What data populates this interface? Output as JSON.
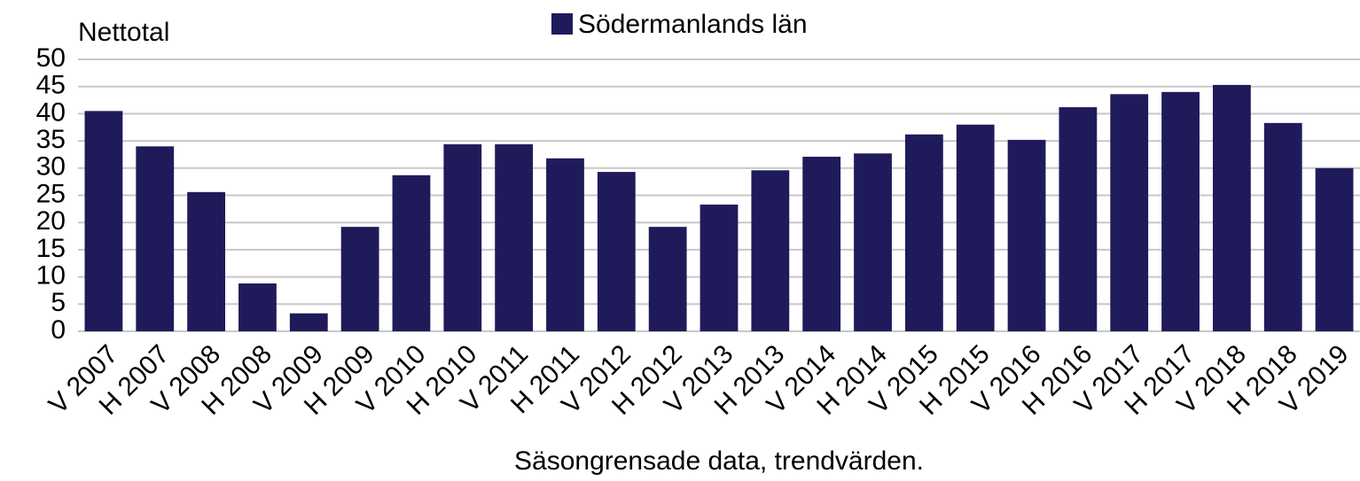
{
  "chart_data": {
    "type": "bar",
    "y_label": "Nettotal",
    "x_label": "Säsongrensade data, trendvärden.",
    "categories": [
      "V 2007",
      "H 2007",
      "V 2008",
      "H 2008",
      "V 2009",
      "H 2009",
      "V 2010",
      "H 2010",
      "V 2011",
      "H 2011",
      "V 2012",
      "H 2012",
      "V 2013",
      "H 2013",
      "V 2014",
      "H 2014",
      "V 2015",
      "H 2015",
      "V 2016",
      "H 2016",
      "V 2017",
      "H 2017",
      "V 2018",
      "H 2018",
      "V 2019"
    ],
    "series": [
      {
        "name": "Södermanlands län",
        "color": "#1f1b5b",
        "values": [
          40.5,
          34.0,
          25.6,
          8.8,
          3.3,
          19.2,
          28.7,
          34.4,
          34.4,
          31.8,
          29.3,
          19.2,
          23.3,
          29.6,
          32.1,
          32.7,
          36.2,
          38.0,
          35.2,
          41.2,
          43.6,
          44.0,
          45.3,
          38.3,
          30.0
        ]
      }
    ],
    "ylim": [
      0,
      50
    ],
    "yticks": [
      0,
      5,
      10,
      15,
      20,
      25,
      30,
      35,
      40,
      45,
      50
    ],
    "grid": true,
    "legend": "top"
  }
}
